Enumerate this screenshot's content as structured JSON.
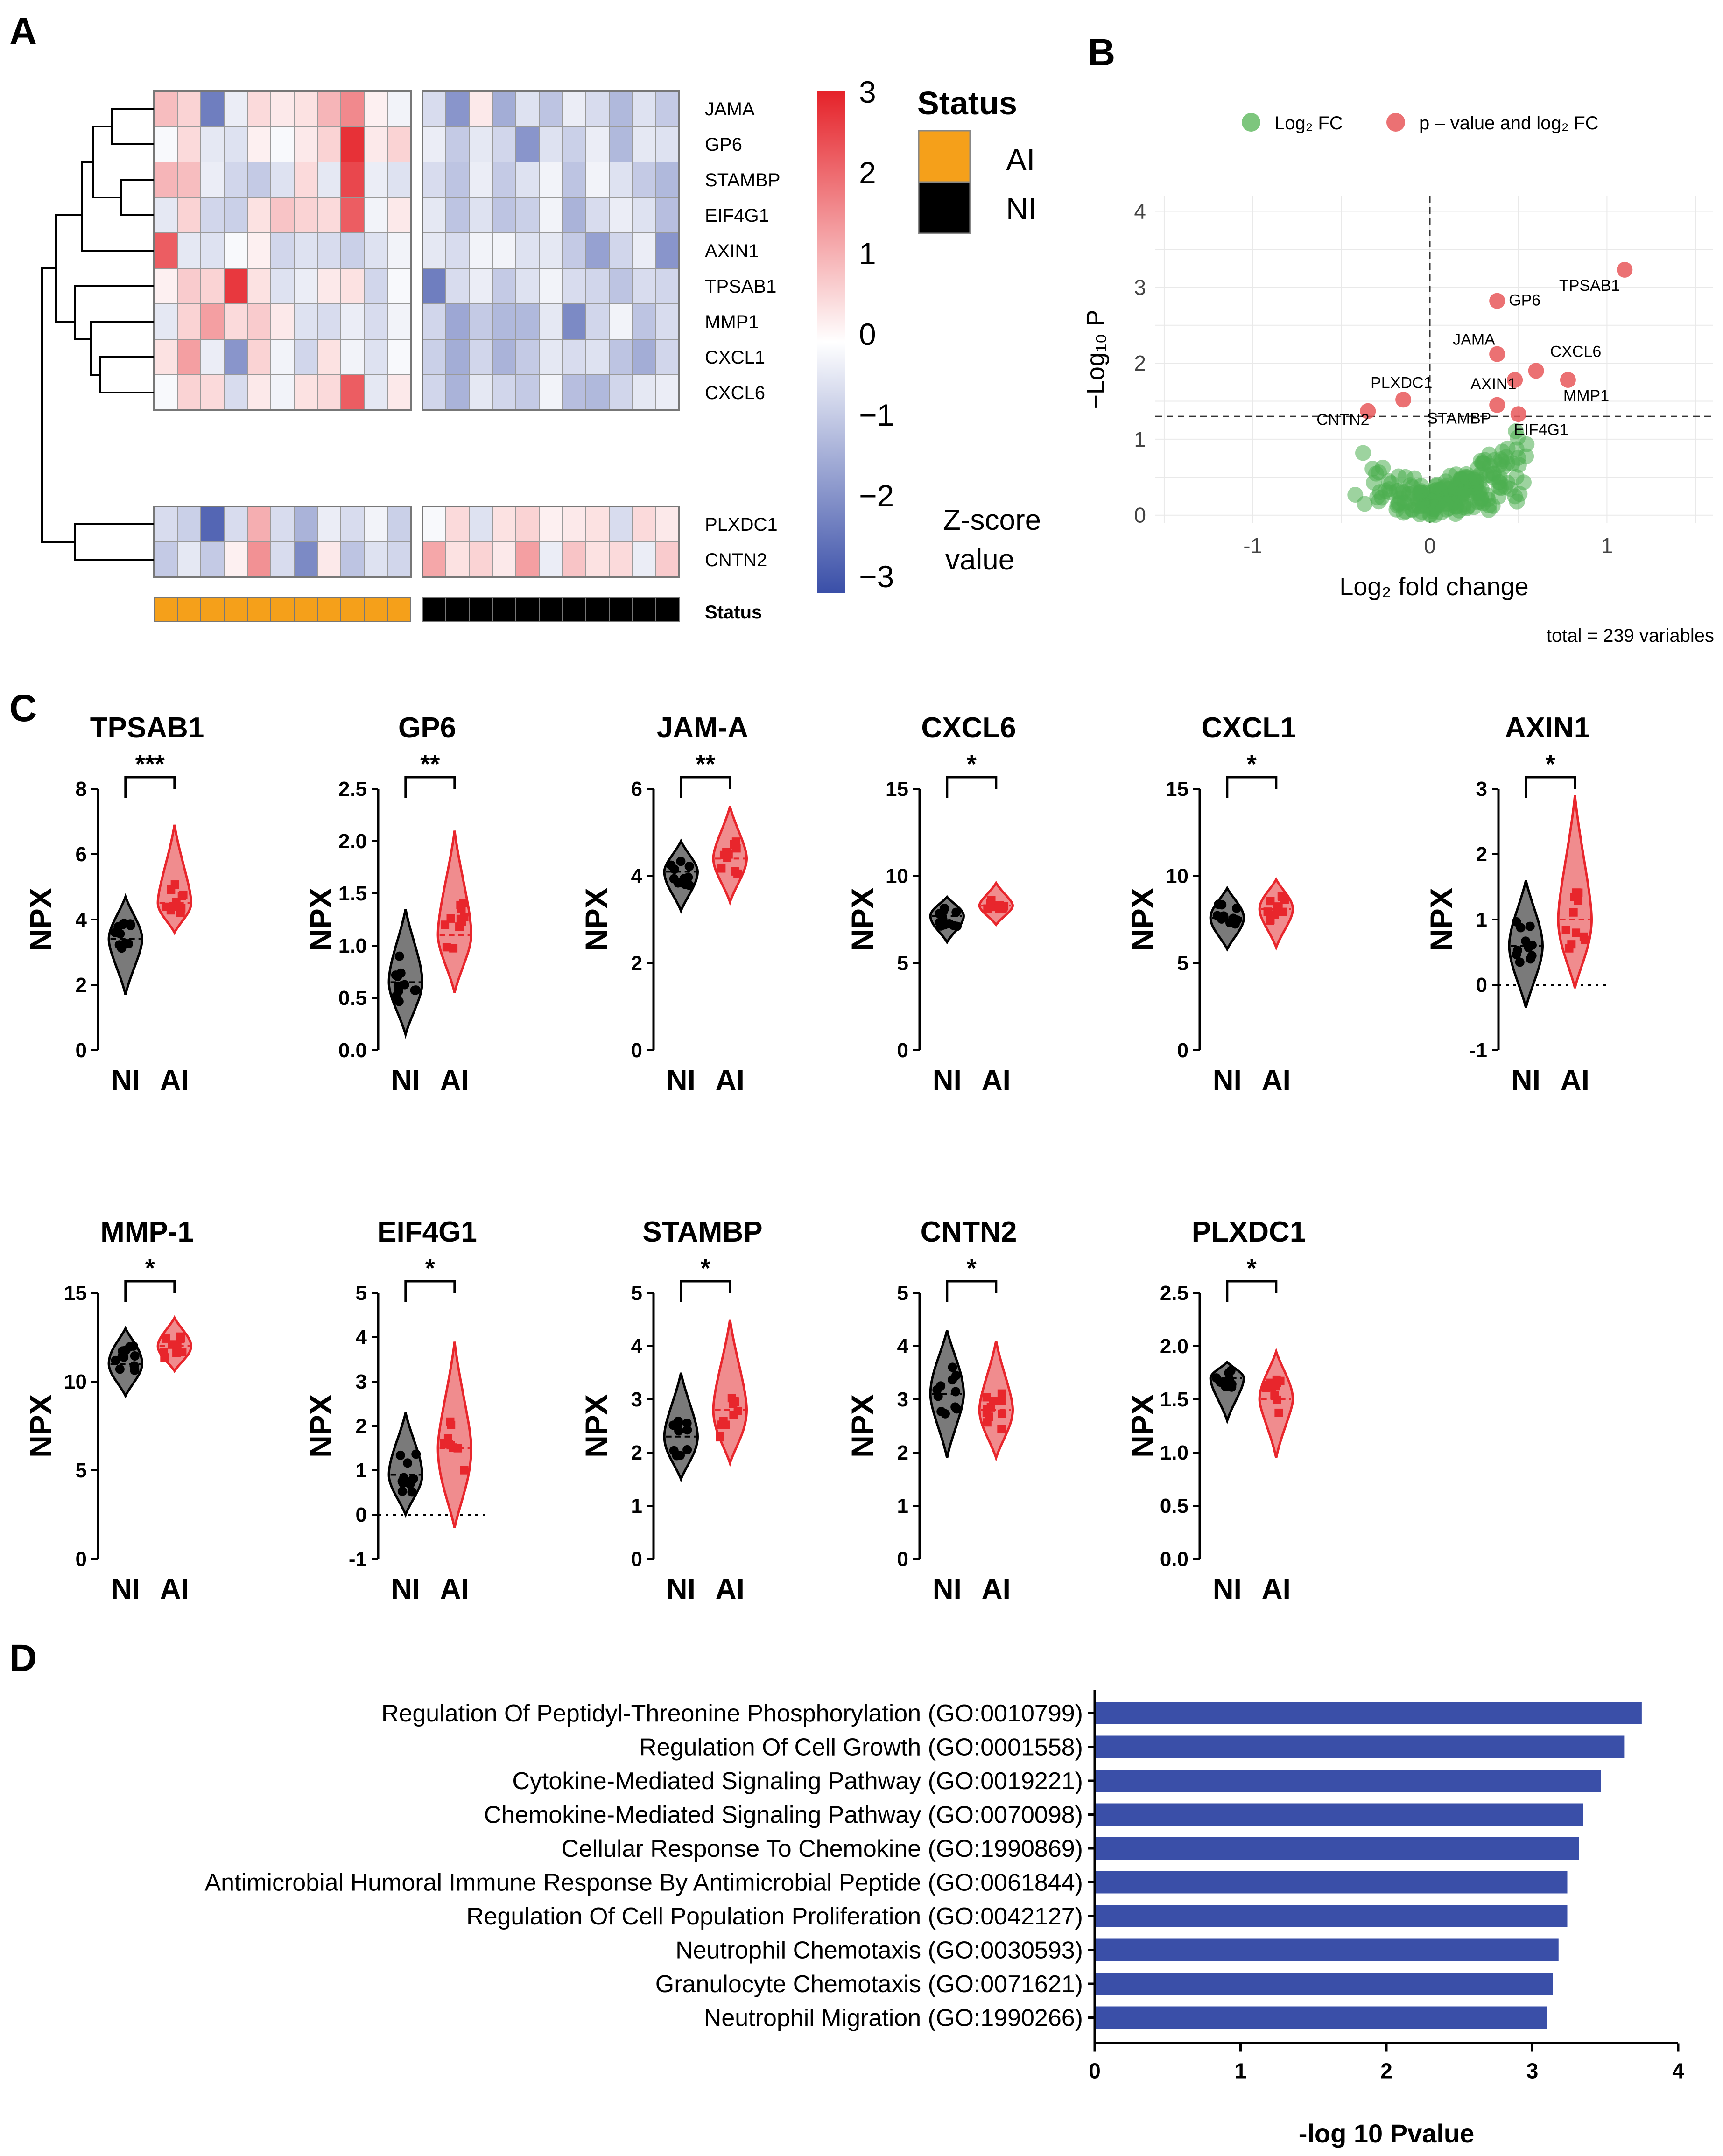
{
  "panels": {
    "a": "A",
    "b": "B",
    "c": "C",
    "d": "D"
  },
  "heatmap": {
    "genes": [
      "JAMA",
      "GP6",
      "STAMBP",
      "EIF4G1",
      "AXIN1",
      "TPSAB1",
      "MMP1",
      "CXCL1",
      "CXCL6",
      "PLXDC1",
      "CNTN2"
    ],
    "status_row_label": "Status",
    "legend_title": "Status",
    "groups": [
      {
        "name": "AI",
        "color": "#f5a01a",
        "samples": 11
      },
      {
        "name": "NI",
        "color": "#000000",
        "samples": 11
      }
    ],
    "scale_title_lines": [
      "Z-score",
      "value"
    ],
    "scale_ticks": [
      "3",
      "2",
      "1",
      "0",
      "−1",
      "−2",
      "−3"
    ],
    "colors": {
      "low": "#3a4fa8",
      "mid": "#ffffff",
      "high": "#e52229"
    },
    "z_values": [
      [
        0.9,
        0.6,
        -2.2,
        -0.3,
        0.5,
        0.3,
        0.4,
        1.0,
        1.6,
        0.2,
        -0.2,
        -0.6,
        -1.8,
        0.3,
        -1.4,
        -0.5,
        -1.0,
        -0.3,
        -0.6,
        -1.2,
        -0.5,
        -0.9
      ],
      [
        -0.1,
        0.5,
        -0.4,
        -0.5,
        0.2,
        -0.1,
        0.3,
        0.6,
        2.8,
        0.3,
        0.6,
        -0.3,
        -0.9,
        -0.4,
        -0.7,
        -1.8,
        -0.5,
        -0.8,
        -0.3,
        -1.2,
        -0.4,
        -0.5
      ],
      [
        1.0,
        0.9,
        -0.3,
        -0.7,
        -0.9,
        -0.5,
        0.5,
        -0.4,
        2.5,
        -0.3,
        -0.5,
        -0.6,
        -1.0,
        -0.3,
        -0.9,
        -0.5,
        -0.2,
        -1.0,
        -0.2,
        -0.5,
        -0.9,
        -1.2
      ],
      [
        -0.4,
        0.6,
        -0.7,
        -0.8,
        0.4,
        0.8,
        0.6,
        0.5,
        2.2,
        -0.2,
        0.3,
        -0.4,
        -1.0,
        -0.5,
        -1.0,
        -0.8,
        -0.2,
        -1.3,
        -0.6,
        -0.3,
        -0.5,
        -1.1
      ],
      [
        2.2,
        -0.4,
        -0.5,
        -0.1,
        0.2,
        -0.7,
        -0.5,
        -0.6,
        -0.8,
        -0.5,
        -0.2,
        -0.4,
        -0.6,
        -0.2,
        -0.2,
        -0.5,
        -0.4,
        -0.9,
        -1.6,
        -0.7,
        -0.3,
        -1.8
      ],
      [
        0.2,
        0.7,
        0.6,
        2.7,
        0.4,
        -0.5,
        -0.3,
        0.3,
        0.4,
        -0.7,
        -0.1,
        -2.2,
        -0.6,
        -0.3,
        -0.9,
        -0.5,
        -0.2,
        -0.6,
        -0.7,
        -1.0,
        -0.6,
        -0.7
      ],
      [
        -0.4,
        0.6,
        1.3,
        0.5,
        0.7,
        0.3,
        -0.5,
        -0.6,
        -0.3,
        -0.6,
        -0.2,
        -0.7,
        -1.5,
        -0.9,
        -1.2,
        -1.2,
        -0.4,
        -2.0,
        -0.7,
        -0.2,
        -1.0,
        -0.6
      ],
      [
        0.4,
        1.3,
        -0.3,
        -1.8,
        0.6,
        -0.2,
        -0.7,
        0.4,
        -0.2,
        -0.5,
        -0.1,
        -0.8,
        -1.4,
        -0.7,
        -1.3,
        -0.9,
        -0.4,
        -0.6,
        -0.5,
        -1.0,
        -1.4,
        -0.7
      ],
      [
        -0.1,
        0.6,
        0.5,
        -0.6,
        0.3,
        -0.2,
        0.4,
        0.5,
        2.2,
        -0.4,
        0.3,
        -0.7,
        -1.3,
        -0.4,
        -0.7,
        -0.9,
        -0.2,
        -1.1,
        -1.2,
        -0.7,
        -0.4,
        -0.3
      ],
      [
        -0.6,
        -0.8,
        -2.6,
        -0.6,
        1.1,
        -0.6,
        -1.3,
        -0.3,
        -0.6,
        -0.2,
        -0.8,
        -0.1,
        0.5,
        -0.5,
        0.4,
        0.6,
        0.2,
        0.3,
        0.4,
        -0.6,
        0.5,
        0.3
      ],
      [
        -0.9,
        -0.4,
        -0.9,
        0.2,
        1.5,
        -0.6,
        -2.0,
        0.3,
        -1.0,
        -0.5,
        -0.7,
        1.2,
        0.4,
        0.6,
        0.3,
        1.3,
        -0.3,
        0.8,
        0.4,
        0.5,
        -0.3,
        0.7
      ]
    ]
  },
  "volcano": {
    "legend": [
      {
        "label": "Log₂ FC",
        "color": "#5cb85c"
      },
      {
        "label": "p – value and log₂ FC",
        "color": "#e8585a"
      }
    ],
    "xlabel": "Log₂ fold change",
    "ylabel": "−Log₁₀ P",
    "xticks": [
      "-1",
      "0",
      "1"
    ],
    "yticks": [
      "0",
      "1",
      "2",
      "3",
      "4"
    ],
    "caption": "total = 239 variables",
    "labeled_points": [
      {
        "gene": "TPSAB1",
        "x": 1.1,
        "y": 3.23
      },
      {
        "gene": "GP6",
        "x": 0.38,
        "y": 2.82
      },
      {
        "gene": "JAMA",
        "x": 0.38,
        "y": 2.12
      },
      {
        "gene": "CXCL6",
        "x": 0.6,
        "y": 1.9
      },
      {
        "gene": "MMP1",
        "x": 0.78,
        "y": 1.78
      },
      {
        "gene": "AXIN1",
        "x": 0.48,
        "y": 1.78
      },
      {
        "gene": "PLXDC1",
        "x": -0.15,
        "y": 1.52
      },
      {
        "gene": "STAMBP",
        "x": 0.38,
        "y": 1.45
      },
      {
        "gene": "CNTN2",
        "x": -0.35,
        "y": 1.37
      },
      {
        "gene": "EIF4G1",
        "x": 0.5,
        "y": 1.33
      }
    ]
  },
  "violins": {
    "y_axis_label": "NPX",
    "groups": [
      "NI",
      "AI"
    ],
    "colors": {
      "NI": "#7a7a7a",
      "AI": "#f08c8e"
    },
    "plots": [
      {
        "title": "TPSAB1",
        "sig": "***",
        "ylim": [
          0,
          8
        ],
        "yticks": [
          "0",
          "2",
          "4",
          "6",
          "8"
        ],
        "NI": {
          "median": 3.4,
          "min": 1.7,
          "max": 4.7,
          "q1": 3.0,
          "q3": 3.8
        },
        "AI": {
          "median": 4.5,
          "min": 3.6,
          "max": 6.9,
          "q1": 4.2,
          "q3": 5.0
        }
      },
      {
        "title": "GP6",
        "sig": "**",
        "ylim": [
          0,
          2.5
        ],
        "yticks": [
          "0.0",
          "0.5",
          "1.0",
          "1.5",
          "2.0",
          "2.5"
        ],
        "NI": {
          "median": 0.65,
          "min": 0.15,
          "max": 1.35,
          "q1": 0.5,
          "q3": 0.85
        },
        "AI": {
          "median": 1.1,
          "min": 0.55,
          "max": 2.1,
          "q1": 0.95,
          "q3": 1.35
        }
      },
      {
        "title": "JAM-A",
        "sig": "**",
        "ylim": [
          0,
          6
        ],
        "yticks": [
          "0",
          "2",
          "4",
          "6"
        ],
        "NI": {
          "median": 4.1,
          "min": 3.2,
          "max": 4.8,
          "q1": 3.8,
          "q3": 4.3
        },
        "AI": {
          "median": 4.4,
          "min": 3.4,
          "max": 5.6,
          "q1": 4.1,
          "q3": 4.7
        }
      },
      {
        "title": "CXCL6",
        "sig": "*",
        "ylim": [
          0,
          15
        ],
        "yticks": [
          "0",
          "5",
          "10",
          "15"
        ],
        "NI": {
          "median": 7.7,
          "min": 6.2,
          "max": 8.8,
          "q1": 7.2,
          "q3": 8.1
        },
        "AI": {
          "median": 8.3,
          "min": 7.2,
          "max": 9.6,
          "q1": 8.0,
          "q3": 8.6
        }
      },
      {
        "title": "CXCL1",
        "sig": "*",
        "ylim": [
          0,
          15
        ],
        "yticks": [
          "0",
          "5",
          "10",
          "15"
        ],
        "NI": {
          "median": 7.6,
          "min": 5.8,
          "max": 9.3,
          "q1": 7.0,
          "q3": 8.2
        },
        "AI": {
          "median": 8.1,
          "min": 5.9,
          "max": 9.8,
          "q1": 7.5,
          "q3": 8.7
        }
      },
      {
        "title": "AXIN1",
        "sig": "*",
        "ylim": [
          -1,
          3
        ],
        "yticks": [
          "-1",
          "0",
          "1",
          "2",
          "3"
        ],
        "zero_line": true,
        "NI": {
          "median": 0.6,
          "min": -0.35,
          "max": 1.6,
          "q1": 0.3,
          "q3": 0.9
        },
        "AI": {
          "median": 1.0,
          "min": -0.05,
          "max": 2.9,
          "q1": 0.6,
          "q3": 1.4
        }
      }
    ],
    "plots_row2": [
      {
        "title": "MMP-1",
        "sig": "*",
        "ylim": [
          0,
          15
        ],
        "yticks": [
          "0",
          "5",
          "10",
          "15"
        ],
        "NI": {
          "median": 11.0,
          "min": 9.2,
          "max": 13.0,
          "q1": 10.4,
          "q3": 11.8
        },
        "AI": {
          "median": 12.0,
          "min": 10.6,
          "max": 13.6,
          "q1": 11.5,
          "q3": 12.5
        }
      },
      {
        "title": "EIF4G1",
        "sig": "*",
        "ylim": [
          -1,
          5
        ],
        "yticks": [
          "-1",
          "0",
          "1",
          "2",
          "3",
          "4",
          "5"
        ],
        "zero_line": true,
        "NI": {
          "median": 0.9,
          "min": 0.0,
          "max": 2.3,
          "q1": 0.6,
          "q3": 1.3
        },
        "AI": {
          "median": 1.5,
          "min": -0.3,
          "max": 3.9,
          "q1": 0.8,
          "q3": 2.0
        }
      },
      {
        "title": "STAMBP",
        "sig": "*",
        "ylim": [
          0,
          5
        ],
        "yticks": [
          "0",
          "1",
          "2",
          "3",
          "4",
          "5"
        ],
        "NI": {
          "median": 2.3,
          "min": 1.5,
          "max": 3.5,
          "q1": 2.0,
          "q3": 2.6
        },
        "AI": {
          "median": 2.8,
          "min": 1.8,
          "max": 4.5,
          "q1": 2.4,
          "q3": 3.2
        }
      },
      {
        "title": "CNTN2",
        "sig": "*",
        "ylim": [
          0,
          5
        ],
        "yticks": [
          "0",
          "1",
          "2",
          "3",
          "4",
          "5"
        ],
        "NI": {
          "median": 3.1,
          "min": 1.9,
          "max": 4.3,
          "q1": 2.8,
          "q3": 3.5
        },
        "AI": {
          "median": 2.8,
          "min": 1.9,
          "max": 4.1,
          "q1": 2.5,
          "q3": 3.1
        }
      },
      {
        "title": "PLXDC1",
        "sig": "*",
        "ylim": [
          0,
          2.5
        ],
        "yticks": [
          "0.0",
          "0.5",
          "1.0",
          "1.5",
          "2.0",
          "2.5"
        ],
        "NI": {
          "median": 1.7,
          "min": 1.3,
          "max": 1.85,
          "q1": 1.6,
          "q3": 1.75
        },
        "AI": {
          "median": 1.5,
          "min": 0.95,
          "max": 1.95,
          "q1": 1.4,
          "q3": 1.65
        }
      }
    ]
  },
  "chart_data": {
    "type": "bar",
    "orientation": "horizontal",
    "categories": [
      "Regulation Of Peptidyl-Threonine Phosphorylation (GO:0010799)",
      "Regulation Of Cell Growth (GO:0001558)",
      "Cytokine-Mediated Signaling Pathway (GO:0019221)",
      "Chemokine-Mediated Signaling Pathway (GO:0070098)",
      "Cellular Response To Chemokine (GO:1990869)",
      "Antimicrobial Humoral Immune Response By Antimicrobial  Peptide (GO:0061844)",
      "Regulation Of Cell Population Proliferation (GO:0042127)",
      "Neutrophil Chemotaxis (GO:0030593)",
      "Granulocyte Chemotaxis (GO:0071621)",
      "Neutrophil Migration (GO:1990266)"
    ],
    "values": [
      3.75,
      3.63,
      3.47,
      3.35,
      3.32,
      3.24,
      3.24,
      3.18,
      3.14,
      3.1
    ],
    "xlabel": "-log 10 Pvalue",
    "xlim": [
      0,
      4
    ],
    "xticks": [
      "0",
      "1",
      "2",
      "3",
      "4"
    ],
    "color": "#3a4fa8"
  }
}
